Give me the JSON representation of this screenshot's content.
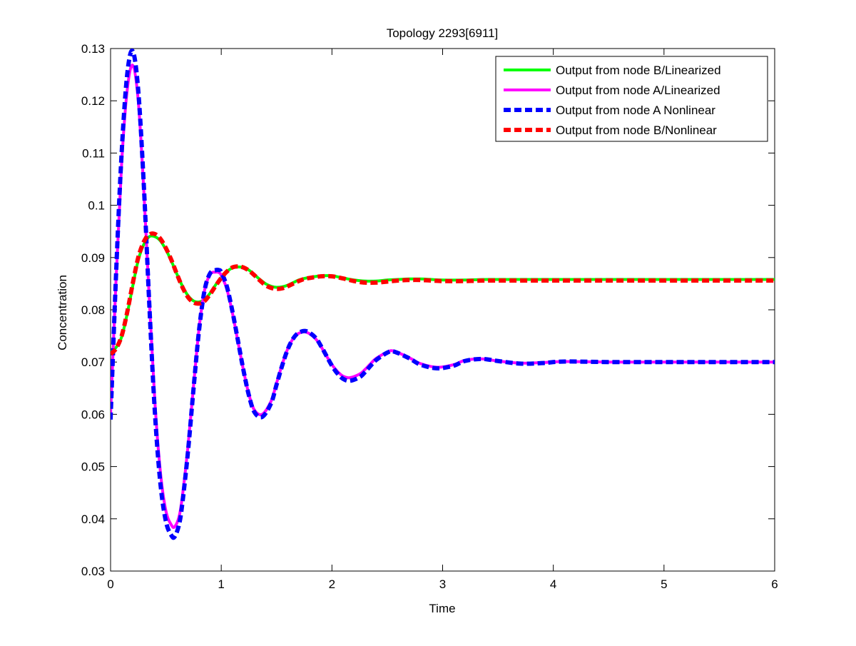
{
  "chart_data": {
    "type": "line",
    "title": "Topology 2293[6911]",
    "xlabel": "Time",
    "ylabel": "Concentration",
    "xlim": [
      0,
      6
    ],
    "ylim": [
      0.03,
      0.13
    ],
    "xticks": [
      0,
      1,
      2,
      3,
      4,
      5,
      6
    ],
    "xtick_labels": [
      "0",
      "1",
      "2",
      "3",
      "4",
      "5",
      "6"
    ],
    "yticks": [
      0.03,
      0.04,
      0.05,
      0.06,
      0.07,
      0.08,
      0.09,
      0.1,
      0.11,
      0.12,
      0.13
    ],
    "ytick_labels": [
      "0.03",
      "0.04",
      "0.05",
      "0.06",
      "0.07",
      "0.08",
      "0.09",
      "0.1",
      "0.11",
      "0.12",
      "0.13"
    ],
    "grid": false,
    "legend_position": "top-right",
    "series": [
      {
        "name": "Output from node B/Linearized",
        "color": "#00ff00",
        "style": "solid",
        "x": [
          0,
          0.05,
          0.1,
          0.15,
          0.2,
          0.25,
          0.3,
          0.35,
          0.4,
          0.45,
          0.5,
          0.55,
          0.6,
          0.65,
          0.7,
          0.75,
          0.8,
          0.85,
          0.9,
          0.95,
          1.0,
          1.05,
          1.1,
          1.15,
          1.2,
          1.25,
          1.3,
          1.35,
          1.4,
          1.45,
          1.5,
          1.55,
          1.6,
          1.65,
          1.7,
          1.75,
          1.8,
          1.9,
          2.0,
          2.1,
          2.2,
          2.3,
          2.4,
          2.5,
          2.6,
          2.7,
          2.8,
          2.9,
          3.0,
          3.2,
          3.4,
          3.6,
          3.8,
          4.0,
          4.5,
          5.0,
          5.5,
          6.0
        ],
        "y": [
          0.072,
          0.0728,
          0.0748,
          0.0792,
          0.0845,
          0.0895,
          0.0925,
          0.094,
          0.094,
          0.0932,
          0.0915,
          0.0893,
          0.0868,
          0.0845,
          0.0827,
          0.0817,
          0.0815,
          0.082,
          0.0832,
          0.0848,
          0.0862,
          0.0873,
          0.088,
          0.0882,
          0.0881,
          0.0876,
          0.0867,
          0.0858,
          0.085,
          0.0845,
          0.0843,
          0.0844,
          0.0847,
          0.0852,
          0.0857,
          0.086,
          0.0862,
          0.0865,
          0.0865,
          0.0861,
          0.0857,
          0.0855,
          0.0855,
          0.0857,
          0.0858,
          0.0859,
          0.0859,
          0.0858,
          0.0857,
          0.0857,
          0.0858,
          0.0858,
          0.0858,
          0.0858,
          0.0858,
          0.0858,
          0.0858,
          0.0858
        ]
      },
      {
        "name": "Output from node A/Linearized",
        "color": "#ff00ff",
        "style": "solid",
        "x": [
          0,
          0.05,
          0.1,
          0.15,
          0.2,
          0.25,
          0.3,
          0.35,
          0.4,
          0.45,
          0.5,
          0.55,
          0.58,
          0.62,
          0.65,
          0.7,
          0.75,
          0.8,
          0.85,
          0.9,
          0.95,
          0.98,
          1.0,
          1.05,
          1.1,
          1.15,
          1.2,
          1.25,
          1.3,
          1.37,
          1.45,
          1.5,
          1.55,
          1.6,
          1.65,
          1.7,
          1.77,
          1.85,
          1.9,
          1.95,
          2.0,
          2.05,
          2.1,
          2.16,
          2.25,
          2.3,
          2.35,
          2.4,
          2.5,
          2.56,
          2.7,
          2.8,
          2.95,
          3.1,
          3.2,
          3.35,
          3.5,
          3.7,
          3.9,
          4.1,
          4.5,
          5.0,
          5.5,
          6.0
        ],
        "y": [
          0.06,
          0.086,
          0.108,
          0.122,
          0.1268,
          0.12,
          0.103,
          0.082,
          0.0625,
          0.049,
          0.0415,
          0.0388,
          0.0385,
          0.0405,
          0.0445,
          0.054,
          0.0655,
          0.0765,
          0.0838,
          0.0868,
          0.0872,
          0.0871,
          0.0866,
          0.084,
          0.0795,
          0.074,
          0.0685,
          0.0638,
          0.0608,
          0.06,
          0.0625,
          0.066,
          0.0695,
          0.0725,
          0.0745,
          0.0755,
          0.0757,
          0.0745,
          0.073,
          0.0712,
          0.0695,
          0.0682,
          0.0673,
          0.067,
          0.0677,
          0.0686,
          0.0697,
          0.0707,
          0.0719,
          0.0721,
          0.0708,
          0.0697,
          0.069,
          0.0695,
          0.0703,
          0.0706,
          0.0702,
          0.0698,
          0.0699,
          0.0701,
          0.07,
          0.07,
          0.07,
          0.07
        ]
      },
      {
        "name": "Output from node A  Nonlinear",
        "color": "#0000ff",
        "style": "dashed",
        "x": [
          0,
          0.05,
          0.1,
          0.15,
          0.2,
          0.25,
          0.3,
          0.35,
          0.4,
          0.45,
          0.5,
          0.55,
          0.58,
          0.62,
          0.65,
          0.7,
          0.75,
          0.8,
          0.85,
          0.9,
          0.95,
          0.98,
          1.0,
          1.05,
          1.1,
          1.15,
          1.2,
          1.25,
          1.3,
          1.37,
          1.45,
          1.5,
          1.55,
          1.6,
          1.65,
          1.7,
          1.77,
          1.85,
          1.9,
          1.95,
          2.0,
          2.05,
          2.1,
          2.16,
          2.25,
          2.3,
          2.35,
          2.4,
          2.5,
          2.56,
          2.7,
          2.8,
          2.95,
          3.1,
          3.2,
          3.35,
          3.5,
          3.7,
          3.9,
          4.1,
          4.5,
          5.0,
          5.5,
          6.0
        ],
        "y": [
          0.059,
          0.087,
          0.11,
          0.125,
          0.1295,
          0.122,
          0.104,
          0.081,
          0.0605,
          0.0468,
          0.0395,
          0.0368,
          0.0366,
          0.039,
          0.0432,
          0.053,
          0.065,
          0.0762,
          0.0838,
          0.087,
          0.0876,
          0.0876,
          0.0872,
          0.0845,
          0.0798,
          0.0742,
          0.0685,
          0.0636,
          0.0604,
          0.0595,
          0.0621,
          0.0657,
          0.0693,
          0.0724,
          0.0745,
          0.0756,
          0.0759,
          0.0747,
          0.0731,
          0.0712,
          0.0693,
          0.0678,
          0.0668,
          0.0664,
          0.0671,
          0.0681,
          0.0693,
          0.0704,
          0.0718,
          0.072,
          0.0707,
          0.0695,
          0.0688,
          0.0693,
          0.0702,
          0.0706,
          0.0702,
          0.0697,
          0.0698,
          0.0701,
          0.07,
          0.07,
          0.07,
          0.07
        ]
      },
      {
        "name": "Output from node B/Nonlinear",
        "color": "#ff0000",
        "style": "dashed",
        "x": [
          0,
          0.05,
          0.1,
          0.15,
          0.2,
          0.25,
          0.3,
          0.35,
          0.4,
          0.45,
          0.5,
          0.55,
          0.6,
          0.65,
          0.7,
          0.75,
          0.8,
          0.85,
          0.9,
          0.95,
          1.0,
          1.05,
          1.1,
          1.15,
          1.2,
          1.25,
          1.3,
          1.35,
          1.4,
          1.45,
          1.5,
          1.55,
          1.6,
          1.65,
          1.7,
          1.75,
          1.8,
          1.9,
          2.0,
          2.1,
          2.2,
          2.3,
          2.4,
          2.5,
          2.6,
          2.7,
          2.8,
          2.9,
          3.0,
          3.2,
          3.4,
          3.6,
          3.8,
          4.0,
          4.5,
          5.0,
          5.5,
          6.0
        ],
        "y": [
          0.0715,
          0.0726,
          0.075,
          0.0795,
          0.085,
          0.09,
          0.093,
          0.0944,
          0.0945,
          0.0936,
          0.0918,
          0.0895,
          0.0868,
          0.0843,
          0.0824,
          0.0814,
          0.0812,
          0.0817,
          0.083,
          0.0846,
          0.0861,
          0.0873,
          0.0881,
          0.0883,
          0.0881,
          0.0875,
          0.0866,
          0.0856,
          0.0847,
          0.0842,
          0.084,
          0.0841,
          0.0845,
          0.085,
          0.0855,
          0.0859,
          0.0861,
          0.0864,
          0.0864,
          0.086,
          0.0855,
          0.0852,
          0.0852,
          0.0854,
          0.0856,
          0.0857,
          0.0857,
          0.0856,
          0.0855,
          0.0855,
          0.0856,
          0.0856,
          0.0856,
          0.0856,
          0.0856,
          0.0856,
          0.0856,
          0.0856
        ]
      }
    ]
  }
}
